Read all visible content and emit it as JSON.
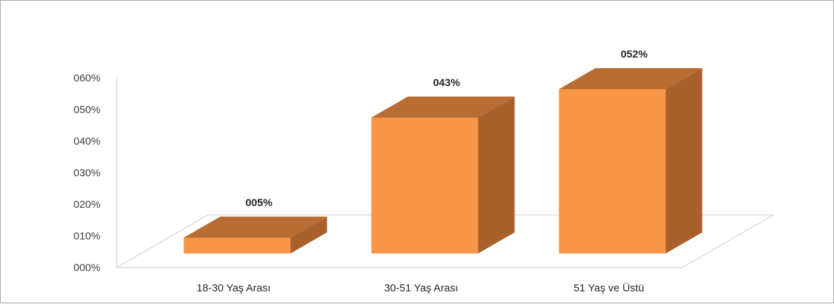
{
  "chart_data": {
    "type": "bar",
    "categories": [
      "18-30 Yaş Arası",
      "30-51 Yaş Arası",
      "51 Yaş ve Üstü"
    ],
    "values": [
      5,
      43,
      52
    ],
    "data_labels": [
      "005%",
      "043%",
      "052%"
    ],
    "title": "",
    "xlabel": "",
    "ylabel": "",
    "ylim": [
      0,
      60
    ],
    "y_ticks": [
      "000%",
      "010%",
      "020%",
      "030%",
      "040%",
      "050%",
      "060%"
    ],
    "grid": false,
    "legend": false,
    "style": "3d-column",
    "colors": {
      "front": "#f79646",
      "top": "#b86d33",
      "side": "#a9612c"
    }
  }
}
